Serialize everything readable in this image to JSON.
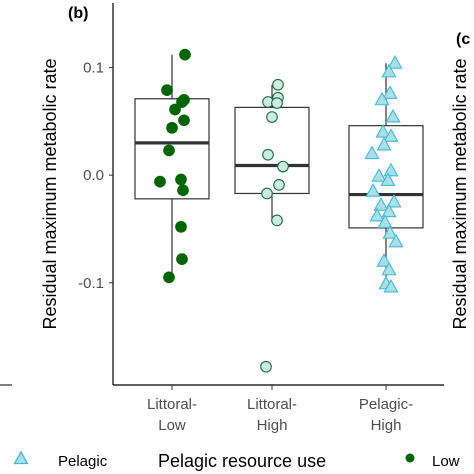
{
  "panel_label": "(b)",
  "right_panel_label": "(c",
  "chart_data": {
    "type": "box+strip",
    "ylabel": "Residual maximum metabolic rate",
    "ylim": [
      -0.195,
      0.16
    ],
    "yticks": [
      0.1,
      0.0,
      -0.1
    ],
    "ytick_labels": [
      "0.1",
      "0.0",
      "-0.1"
    ],
    "grid": false,
    "categories": [
      {
        "line1": "Littoral-",
        "line2": "Low"
      },
      {
        "line1": "Littoral-",
        "line2": "High"
      },
      {
        "line1": "Pelagic-",
        "line2": "High"
      }
    ],
    "boxes": [
      {
        "whisker_low": -0.095,
        "q1": -0.022,
        "median": 0.03,
        "q3": 0.071,
        "whisker_high": 0.112
      },
      {
        "whisker_low": -0.042,
        "q1": -0.017,
        "median": 0.009,
        "q3": 0.063,
        "whisker_high": 0.084
      },
      {
        "whisker_low": -0.104,
        "q1": -0.049,
        "median": -0.018,
        "q3": 0.046,
        "whisker_high": 0.104
      }
    ],
    "points": [
      [
        {
          "dx": 0.13,
          "y": 0.112
        },
        {
          "dx": -0.05,
          "y": 0.079
        },
        {
          "dx": 0.12,
          "y": 0.07
        },
        {
          "dx": 0.1,
          "y": 0.068
        },
        {
          "dx": 0.03,
          "y": 0.061
        },
        {
          "dx": 0.12,
          "y": 0.051
        },
        {
          "dx": 0.0,
          "y": 0.044
        },
        {
          "dx": -0.03,
          "y": 0.023
        },
        {
          "dx": 0.09,
          "y": -0.004
        },
        {
          "dx": -0.12,
          "y": -0.006
        },
        {
          "dx": 0.11,
          "y": -0.014
        },
        {
          "dx": 0.09,
          "y": -0.048
        },
        {
          "dx": 0.1,
          "y": -0.078
        },
        {
          "dx": -0.03,
          "y": -0.095
        }
      ],
      [
        {
          "dx": 0.06,
          "y": 0.084
        },
        {
          "dx": 0.06,
          "y": 0.072
        },
        {
          "dx": -0.04,
          "y": 0.068
        },
        {
          "dx": 0.05,
          "y": 0.067
        },
        {
          "dx": 0.0,
          "y": 0.054
        },
        {
          "dx": -0.04,
          "y": 0.019
        },
        {
          "dx": 0.11,
          "y": 0.008
        },
        {
          "dx": 0.07,
          "y": -0.009
        },
        {
          "dx": -0.05,
          "y": -0.017
        },
        {
          "dx": 0.05,
          "y": -0.042
        },
        {
          "dx": -0.06,
          "y": -0.178
        }
      ],
      [
        {
          "dx": 0.09,
          "y": 0.104
        },
        {
          "dx": 0.03,
          "y": 0.096
        },
        {
          "dx": 0.04,
          "y": 0.076
        },
        {
          "dx": -0.04,
          "y": 0.07
        },
        {
          "dx": 0.07,
          "y": 0.054
        },
        {
          "dx": -0.03,
          "y": 0.04
        },
        {
          "dx": 0.05,
          "y": 0.036
        },
        {
          "dx": -0.02,
          "y": 0.028
        },
        {
          "dx": -0.14,
          "y": 0.02
        },
        {
          "dx": 0.05,
          "y": 0.004
        },
        {
          "dx": -0.07,
          "y": -0.001
        },
        {
          "dx": 0.02,
          "y": -0.005
        },
        {
          "dx": -0.13,
          "y": -0.015
        },
        {
          "dx": 0.08,
          "y": -0.025
        },
        {
          "dx": -0.05,
          "y": -0.028
        },
        {
          "dx": 0.03,
          "y": -0.034
        },
        {
          "dx": -0.09,
          "y": -0.038
        },
        {
          "dx": -0.01,
          "y": -0.044
        },
        {
          "dx": 0.04,
          "y": -0.054
        },
        {
          "dx": 0.1,
          "y": -0.062
        },
        {
          "dx": -0.02,
          "y": -0.08
        },
        {
          "dx": 0.03,
          "y": -0.088
        },
        {
          "dx": 0.0,
          "y": -0.101
        },
        {
          "dx": 0.05,
          "y": -0.104
        }
      ]
    ],
    "point_styles": [
      {
        "shape": "circle",
        "fill": "#006400",
        "stroke": "#006400"
      },
      {
        "shape": "circle",
        "fill": "#ccece0",
        "stroke": "#1f6b4a"
      },
      {
        "shape": "triangle",
        "fill": "#a8e0ea",
        "stroke": "#4cb7cc"
      }
    ],
    "legend": {
      "title": "Pelagic resource use",
      "placement": "bottom",
      "left_label": "Pelagic",
      "right_label": "Low"
    }
  }
}
